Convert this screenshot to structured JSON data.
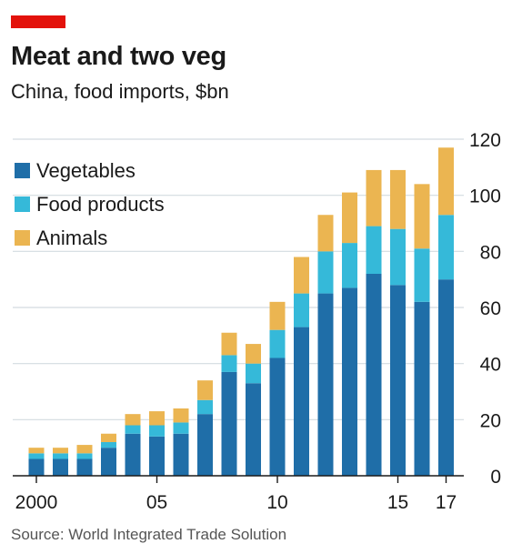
{
  "header": {
    "title": "Meat and two veg",
    "subtitle": "China, food imports, $bn",
    "accent_color": "#e3120b"
  },
  "footer": {
    "source": "Source: World Integrated Trade Solution"
  },
  "chart_data": {
    "type": "bar",
    "stacked": true,
    "title": "Meat and two veg",
    "subtitle": "China, food imports, $bn",
    "categories": [
      "2000",
      "2001",
      "2002",
      "2003",
      "2004",
      "2005",
      "2006",
      "2007",
      "2008",
      "2009",
      "2010",
      "2011",
      "2012",
      "2013",
      "2014",
      "2015",
      "2016",
      "2017"
    ],
    "x_tick_labels": [
      {
        "category": "2000",
        "label": "2000"
      },
      {
        "category": "2005",
        "label": "05"
      },
      {
        "category": "2010",
        "label": "10"
      },
      {
        "category": "2015",
        "label": "15"
      },
      {
        "category": "2017",
        "label": "17"
      }
    ],
    "series": [
      {
        "name": "Vegetables",
        "color": "#1f6ea8",
        "values": [
          6,
          6,
          6,
          10,
          15,
          14,
          15,
          22,
          37,
          33,
          42,
          53,
          65,
          67,
          72,
          68,
          62,
          70
        ]
      },
      {
        "name": "Food products",
        "color": "#35b9d9",
        "values": [
          2,
          2,
          2,
          2,
          3,
          4,
          4,
          5,
          6,
          7,
          10,
          12,
          15,
          16,
          17,
          20,
          19,
          23
        ]
      },
      {
        "name": "Animals",
        "color": "#ebb551",
        "values": [
          2,
          2,
          3,
          3,
          4,
          5,
          5,
          7,
          8,
          7,
          10,
          13,
          13,
          18,
          20,
          21,
          23,
          24
        ]
      }
    ],
    "ylim": [
      0,
      120
    ],
    "y_ticks": [
      0,
      20,
      40,
      60,
      80,
      100,
      120
    ],
    "y_axis_side": "right",
    "grid": true,
    "legend_placement": "top-left"
  }
}
